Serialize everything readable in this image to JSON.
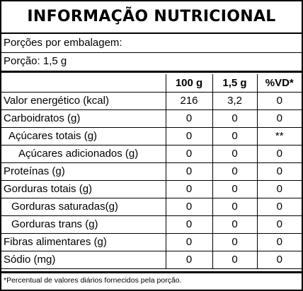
{
  "title": "INFORMAÇÃO NUTRICIONAL",
  "servings_per_package": "Porções por embalagem:",
  "serving_size": "Porção: 1,5 g",
  "columns": [
    "100 g",
    "1,5 g",
    "%VD*"
  ],
  "rows": [
    {
      "label": "Valor energético (kcal)",
      "v100": "216",
      "vserv": "3,2",
      "vd": "0"
    },
    {
      "label": "Carboidratos (g)",
      "v100": "0",
      "vserv": "0",
      "vd": "0"
    },
    {
      "label": "Açúcares totais (g)",
      "v100": "0",
      "vserv": "0",
      "vd": "**"
    },
    {
      "label": "Açúcares adicionados (g)",
      "v100": "0",
      "vserv": "0",
      "vd": "0"
    },
    {
      "label": "Proteínas (g)",
      "v100": "0",
      "vserv": "0",
      "vd": "0"
    },
    {
      "label": "Gorduras totais (g)",
      "v100": "0",
      "vserv": "0",
      "vd": "0"
    },
    {
      "label": "Gorduras saturadas(g)",
      "v100": "0",
      "vserv": "0",
      "vd": "0"
    },
    {
      "label": "Gorduras trans (g)",
      "v100": "0",
      "vserv": "0",
      "vd": "0"
    },
    {
      "label": "Fibras alimentares (g)",
      "v100": "0",
      "vserv": "0",
      "vd": "0"
    },
    {
      "label": "Sódio (mg)",
      "v100": "0",
      "vserv": "0",
      "vd": "0"
    }
  ],
  "footnote": "*Percentual de valores diários fornecidos pela porção."
}
